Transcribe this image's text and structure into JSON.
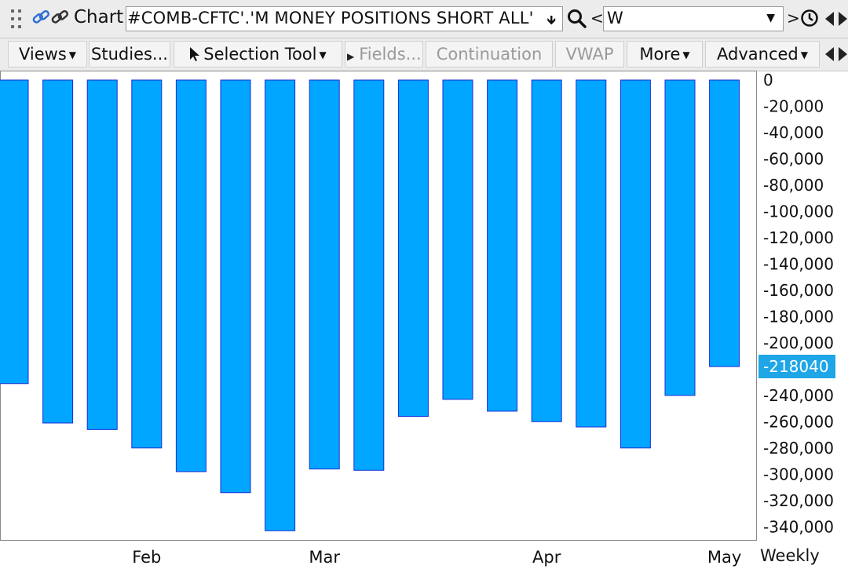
{
  "toolbar": {
    "app_title": "Chart",
    "symbol_value": "#COMB-CFTC'.'M MONEY POSITIONS SHORT ALL'",
    "interval_value": "W",
    "prev_arrow": "<",
    "next_arrow": ">"
  },
  "menu": {
    "views": "Views",
    "studies": "Studies...",
    "selection_tool": "Selection Tool",
    "fields": "Fields...",
    "continuation": "Continuation",
    "vwap": "VWAP",
    "more": "More",
    "advanced": "Advanced"
  },
  "colors": {
    "bar_fill": "#00a6ff",
    "bar_stroke": "#1a2fd6",
    "price_label_bg": "#1ea6e6"
  },
  "chart_data": {
    "type": "bar",
    "series": [
      {
        "values": [
          -231000,
          -261000,
          -266000,
          -280000,
          -298000,
          -314000,
          -343000,
          -296000,
          -297000,
          -256000,
          -243000,
          -252000,
          -260000,
          -264000,
          -280000,
          -240000,
          -218040
        ]
      }
    ],
    "ylim": [
      -350000,
      0
    ],
    "y_ticks": [
      0,
      -20000,
      -40000,
      -60000,
      -80000,
      -100000,
      -120000,
      -140000,
      -160000,
      -180000,
      -200000,
      -240000,
      -260000,
      -280000,
      -300000,
      -320000,
      -340000
    ],
    "y_tick_labels": [
      "0",
      "-20,000",
      "-40,000",
      "-60,000",
      "-80,000",
      "-100,000",
      "-120,000",
      "-140,000",
      "-160,000",
      "-180,000",
      "-200,000",
      "-240,000",
      "-260,000",
      "-280,000",
      "-300,000",
      "-320,000",
      "-340,000"
    ],
    "x_labels": [
      {
        "label": "Feb",
        "bar": 3
      },
      {
        "label": "Mar",
        "bar": 7
      },
      {
        "label": "Apr",
        "bar": 12
      },
      {
        "label": "May",
        "bar": 16
      }
    ],
    "last_value_label": "-218040",
    "interval_label": "Weekly",
    "grid": false
  }
}
